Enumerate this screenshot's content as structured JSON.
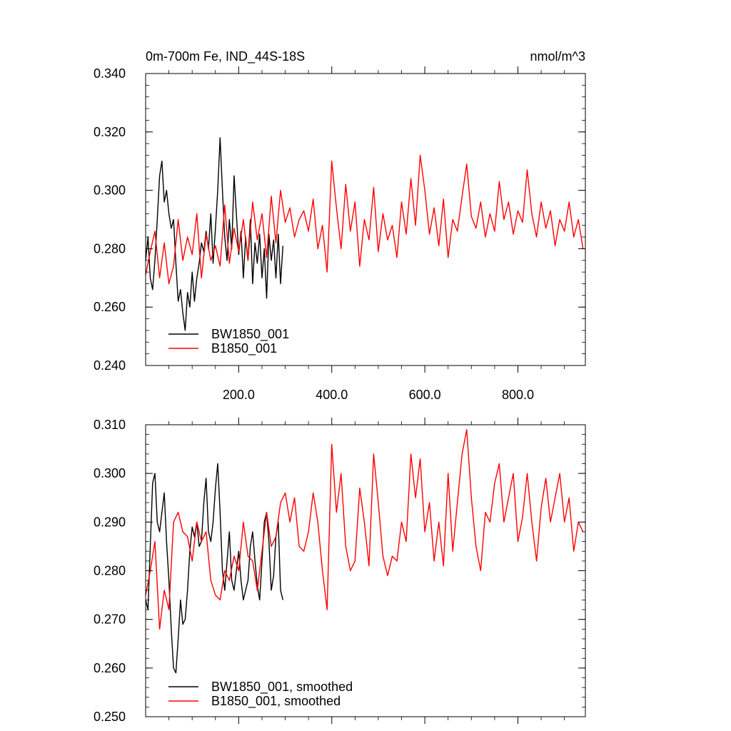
{
  "figure": {
    "title_left": "0m-700m Fe, IND_44S-18S",
    "title_right": "nmol/m^3"
  },
  "chart_data": [
    {
      "type": "line",
      "title": "0m-700m Fe, IND_44S-18S",
      "units": "nmol/m^3",
      "xlim": [
        0,
        945
      ],
      "ylim": [
        0.24,
        0.34
      ],
      "x_ticks": [
        200,
        400,
        600,
        800
      ],
      "x_tick_labels": [
        "200.0",
        "400.0",
        "600.0",
        "800.0"
      ],
      "y_ticks": [
        0.24,
        0.26,
        0.28,
        0.3,
        0.32,
        0.34
      ],
      "y_tick_labels": [
        "0.240",
        "0.260",
        "0.280",
        "0.300",
        "0.320",
        "0.340"
      ],
      "grid": false,
      "legend_position": "bottom-left",
      "series": [
        {
          "name": "BW1850_001",
          "color": "#000000",
          "x": [
            0,
            5,
            10,
            15,
            20,
            25,
            30,
            35,
            40,
            45,
            50,
            55,
            60,
            65,
            70,
            75,
            80,
            85,
            90,
            95,
            100,
            105,
            110,
            115,
            120,
            125,
            130,
            135,
            140,
            145,
            150,
            155,
            160,
            165,
            170,
            175,
            180,
            185,
            190,
            195,
            200,
            205,
            210,
            215,
            220,
            225,
            230,
            235,
            240,
            245,
            250,
            255,
            260,
            265,
            270,
            275,
            280,
            285,
            290,
            295
          ],
          "values": [
            0.276,
            0.284,
            0.27,
            0.266,
            0.276,
            0.29,
            0.305,
            0.31,
            0.296,
            0.3,
            0.292,
            0.287,
            0.29,
            0.275,
            0.262,
            0.266,
            0.258,
            0.252,
            0.265,
            0.26,
            0.272,
            0.262,
            0.27,
            0.275,
            0.282,
            0.279,
            0.286,
            0.28,
            0.292,
            0.275,
            0.287,
            0.3,
            0.318,
            0.3,
            0.284,
            0.276,
            0.29,
            0.28,
            0.305,
            0.292,
            0.278,
            0.286,
            0.27,
            0.284,
            0.276,
            0.29,
            0.268,
            0.282,
            0.275,
            0.285,
            0.27,
            0.28,
            0.263,
            0.285,
            0.276,
            0.283,
            0.27,
            0.285,
            0.268,
            0.281
          ]
        },
        {
          "name": "B1850_001",
          "color": "#ff0000",
          "x": [
            0,
            10,
            20,
            30,
            40,
            50,
            60,
            70,
            80,
            90,
            100,
            110,
            120,
            130,
            140,
            150,
            160,
            170,
            180,
            190,
            200,
            210,
            220,
            230,
            240,
            250,
            260,
            270,
            280,
            290,
            300,
            310,
            320,
            330,
            340,
            350,
            360,
            370,
            380,
            390,
            400,
            410,
            420,
            430,
            440,
            450,
            460,
            470,
            480,
            490,
            500,
            510,
            520,
            530,
            540,
            550,
            560,
            570,
            580,
            590,
            600,
            610,
            620,
            630,
            640,
            650,
            660,
            670,
            680,
            690,
            700,
            710,
            720,
            730,
            740,
            750,
            760,
            770,
            780,
            790,
            800,
            810,
            820,
            830,
            840,
            850,
            860,
            870,
            880,
            890,
            900,
            910,
            920,
            930,
            940
          ],
          "values": [
            0.271,
            0.279,
            0.286,
            0.27,
            0.282,
            0.268,
            0.274,
            0.29,
            0.276,
            0.284,
            0.278,
            0.292,
            0.27,
            0.285,
            0.276,
            0.281,
            0.274,
            0.295,
            0.275,
            0.287,
            0.279,
            0.29,
            0.276,
            0.296,
            0.283,
            0.292,
            0.277,
            0.298,
            0.282,
            0.3,
            0.289,
            0.294,
            0.284,
            0.29,
            0.293,
            0.286,
            0.297,
            0.28,
            0.288,
            0.272,
            0.31,
            0.294,
            0.28,
            0.302,
            0.286,
            0.296,
            0.274,
            0.29,
            0.283,
            0.301,
            0.279,
            0.292,
            0.283,
            0.288,
            0.277,
            0.296,
            0.285,
            0.304,
            0.288,
            0.312,
            0.3,
            0.285,
            0.294,
            0.281,
            0.297,
            0.277,
            0.29,
            0.286,
            0.298,
            0.309,
            0.291,
            0.287,
            0.296,
            0.284,
            0.292,
            0.286,
            0.303,
            0.29,
            0.296,
            0.285,
            0.293,
            0.289,
            0.307,
            0.292,
            0.284,
            0.296,
            0.287,
            0.293,
            0.281,
            0.29,
            0.286,
            0.296,
            0.284,
            0.29,
            0.28
          ]
        }
      ]
    },
    {
      "type": "line",
      "xlim": [
        0,
        945
      ],
      "ylim": [
        0.25,
        0.31
      ],
      "x_ticks": [
        200,
        400,
        600,
        800
      ],
      "y_ticks": [
        0.25,
        0.26,
        0.27,
        0.28,
        0.29,
        0.3,
        0.31
      ],
      "y_tick_labels": [
        "0.250",
        "0.260",
        "0.270",
        "0.280",
        "0.290",
        "0.300",
        "0.310"
      ],
      "grid": false,
      "legend_position": "bottom-left",
      "series": [
        {
          "name": "BW1850_001, smoothed",
          "color": "#000000",
          "x": [
            0,
            5,
            10,
            15,
            20,
            25,
            30,
            35,
            40,
            45,
            50,
            55,
            60,
            65,
            70,
            75,
            80,
            85,
            90,
            95,
            100,
            105,
            110,
            115,
            120,
            125,
            130,
            135,
            140,
            145,
            150,
            155,
            160,
            165,
            170,
            175,
            180,
            185,
            190,
            195,
            200,
            205,
            210,
            215,
            220,
            225,
            230,
            235,
            240,
            245,
            250,
            255,
            260,
            265,
            270,
            275,
            280,
            285,
            290,
            295
          ],
          "values": [
            0.274,
            0.272,
            0.285,
            0.298,
            0.3,
            0.29,
            0.288,
            0.292,
            0.296,
            0.286,
            0.278,
            0.268,
            0.26,
            0.259,
            0.266,
            0.274,
            0.269,
            0.27,
            0.276,
            0.284,
            0.289,
            0.287,
            0.29,
            0.285,
            0.286,
            0.294,
            0.299,
            0.288,
            0.286,
            0.29,
            0.297,
            0.302,
            0.292,
            0.28,
            0.276,
            0.282,
            0.288,
            0.278,
            0.276,
            0.28,
            0.284,
            0.278,
            0.274,
            0.276,
            0.278,
            0.285,
            0.288,
            0.282,
            0.277,
            0.274,
            0.282,
            0.29,
            0.292,
            0.286,
            0.276,
            0.279,
            0.287,
            0.29,
            0.276,
            0.274
          ]
        },
        {
          "name": "B1850_001, smoothed",
          "color": "#ff0000",
          "x": [
            0,
            10,
            20,
            30,
            40,
            50,
            60,
            70,
            80,
            90,
            100,
            110,
            120,
            130,
            140,
            150,
            160,
            170,
            180,
            190,
            200,
            210,
            220,
            230,
            240,
            250,
            260,
            270,
            280,
            290,
            300,
            310,
            320,
            330,
            340,
            350,
            360,
            370,
            380,
            390,
            400,
            410,
            420,
            430,
            440,
            450,
            460,
            470,
            480,
            490,
            500,
            510,
            520,
            530,
            540,
            550,
            560,
            570,
            580,
            590,
            600,
            610,
            620,
            630,
            640,
            650,
            660,
            670,
            680,
            690,
            700,
            710,
            720,
            730,
            740,
            750,
            760,
            770,
            780,
            790,
            800,
            810,
            820,
            830,
            840,
            850,
            860,
            870,
            880,
            890,
            900,
            910,
            920,
            930,
            940
          ],
          "values": [
            0.275,
            0.28,
            0.286,
            0.268,
            0.276,
            0.272,
            0.29,
            0.292,
            0.288,
            0.287,
            0.282,
            0.29,
            0.286,
            0.288,
            0.278,
            0.275,
            0.274,
            0.28,
            0.278,
            0.283,
            0.28,
            0.29,
            0.283,
            0.282,
            0.276,
            0.284,
            0.292,
            0.285,
            0.287,
            0.294,
            0.296,
            0.29,
            0.295,
            0.285,
            0.284,
            0.288,
            0.296,
            0.29,
            0.28,
            0.272,
            0.306,
            0.292,
            0.3,
            0.285,
            0.28,
            0.282,
            0.297,
            0.29,
            0.281,
            0.304,
            0.294,
            0.283,
            0.279,
            0.283,
            0.282,
            0.29,
            0.286,
            0.304,
            0.295,
            0.303,
            0.288,
            0.294,
            0.282,
            0.29,
            0.281,
            0.3,
            0.284,
            0.294,
            0.304,
            0.309,
            0.295,
            0.285,
            0.28,
            0.292,
            0.29,
            0.298,
            0.302,
            0.29,
            0.295,
            0.3,
            0.286,
            0.291,
            0.3,
            0.29,
            0.282,
            0.293,
            0.299,
            0.29,
            0.295,
            0.3,
            0.29,
            0.295,
            0.284,
            0.29,
            0.288
          ]
        }
      ]
    }
  ]
}
